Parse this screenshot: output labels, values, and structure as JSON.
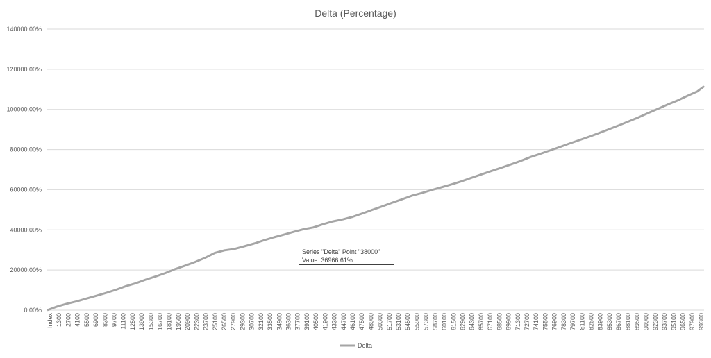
{
  "chart_data": {
    "type": "line",
    "title": "Delta (Percentage)",
    "xlabel": "",
    "ylabel": "",
    "ylim": [
      0,
      140000
    ],
    "y_unit_suffix": "%",
    "y_ticks": [
      "0.00%",
      "20000.00%",
      "40000.00%",
      "60000.00%",
      "80000.00%",
      "100000.00%",
      "120000.00%",
      "140000.00%"
    ],
    "x_tick_labels": [
      "Index",
      "1300",
      "2700",
      "4100",
      "5500",
      "6900",
      "8300",
      "9700",
      "11100",
      "12500",
      "13900",
      "15300",
      "16700",
      "18100",
      "19500",
      "20900",
      "22300",
      "23700",
      "25100",
      "26500",
      "27900",
      "29300",
      "30700",
      "32100",
      "33500",
      "34900",
      "36300",
      "37700",
      "39100",
      "40500",
      "41900",
      "43300",
      "44700",
      "46100",
      "47500",
      "48900",
      "50300",
      "51700",
      "53100",
      "54500",
      "55900",
      "57300",
      "58700",
      "60100",
      "61500",
      "62900",
      "64300",
      "65700",
      "67100",
      "68500",
      "69900",
      "71300",
      "72700",
      "74100",
      "75500",
      "76900",
      "78300",
      "79700",
      "81100",
      "82500",
      "83900",
      "85300",
      "86700",
      "88100",
      "89500",
      "90900",
      "92300",
      "93700",
      "95100",
      "96500",
      "97900",
      "99300"
    ],
    "grid": true,
    "legend_position": "bottom",
    "series": [
      {
        "name": "Delta",
        "color": "#a5a5a5",
        "x": [
          0,
          1500,
          3000,
          4500,
          6000,
          7500,
          9000,
          10500,
          12000,
          13500,
          15000,
          16500,
          18000,
          19500,
          21000,
          22500,
          24000,
          25500,
          27000,
          28500,
          30000,
          31500,
          33000,
          34500,
          36000,
          37500,
          39000,
          40500,
          42000,
          43500,
          45000,
          46500,
          48000,
          49500,
          51000,
          52500,
          54000,
          55500,
          57000,
          58500,
          60000,
          61500,
          63000,
          64500,
          66000,
          67500,
          69000,
          70500,
          72000,
          73500,
          75000,
          76500,
          78000,
          79500,
          81000,
          82500,
          84000,
          85500,
          87000,
          88500,
          90000,
          91500,
          93000,
          94500,
          96000,
          97500,
          99000,
          100000
        ],
        "y": [
          0,
          1800,
          3200,
          4400,
          5800,
          7200,
          8600,
          10200,
          12000,
          13400,
          15200,
          16800,
          18500,
          20500,
          22200,
          24000,
          26000,
          28500,
          29800,
          30500,
          31800,
          33200,
          34800,
          36300,
          37600,
          39000,
          40300,
          41200,
          42800,
          44200,
          45200,
          46500,
          48200,
          50000,
          51700,
          53500,
          55200,
          57000,
          58300,
          59800,
          61200,
          62600,
          64100,
          65800,
          67500,
          69200,
          70800,
          72500,
          74200,
          76200,
          77800,
          79500,
          81200,
          83000,
          84700,
          86400,
          88200,
          90100,
          92000,
          94000,
          96000,
          98200,
          100300,
          102500,
          104500,
          106800,
          109000,
          111500
        ]
      }
    ],
    "annotations": [
      {
        "type": "tooltip",
        "lines": [
          "Series \"Delta\" Point \"38000\"",
          "Value: 36966.61%"
        ]
      }
    ]
  },
  "tooltip": {
    "line1": "Series \"Delta\" Point \"38000\"",
    "line2": "Value: 36966.61%"
  },
  "legend": {
    "label": "Delta"
  }
}
